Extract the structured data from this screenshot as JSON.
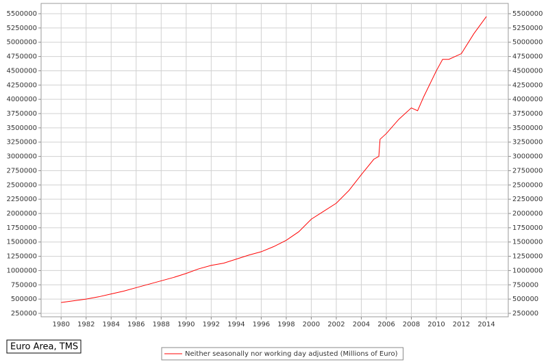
{
  "chart_data": {
    "type": "line",
    "title": "Euro Area, TMS",
    "x": [
      1980,
      1981,
      1982,
      1983,
      1984,
      1985,
      1986,
      1987,
      1988,
      1989,
      1990,
      1991,
      1992,
      1993,
      1994,
      1995,
      1996,
      1997,
      1998,
      1999,
      2000,
      2001,
      2002,
      2003,
      2004,
      2005,
      2005.4,
      2005.5,
      2006,
      2007,
      2008,
      2008.5,
      2009,
      2010,
      2010.5,
      2011,
      2012,
      2013,
      2014
    ],
    "series": [
      {
        "name": "Neither seasonally nor working day adjusted (Millions of Euro)",
        "color": "#ff0000",
        "values": [
          440000,
          470000,
          500000,
          540000,
          590000,
          640000,
          700000,
          760000,
          820000,
          880000,
          950000,
          1030000,
          1090000,
          1130000,
          1200000,
          1270000,
          1330000,
          1420000,
          1530000,
          1680000,
          1900000,
          2040000,
          2180000,
          2400000,
          2680000,
          2950000,
          3000000,
          3300000,
          3400000,
          3650000,
          3850000,
          3800000,
          4050000,
          4500000,
          4700000,
          4700000,
          4800000,
          5150000,
          5450000
        ]
      }
    ],
    "xlim": [
      1978.4,
      2015.75
    ],
    "xticks": [
      1980,
      1982,
      1984,
      1986,
      1988,
      1990,
      1992,
      1994,
      1996,
      1998,
      2000,
      2002,
      2004,
      2006,
      2008,
      2010,
      2012,
      2014
    ],
    "ylim": [
      190000,
      5680000
    ],
    "yticks": [
      250000,
      500000,
      750000,
      1000000,
      1250000,
      1500000,
      1750000,
      2000000,
      2250000,
      2500000,
      2750000,
      3000000,
      3250000,
      3500000,
      3750000,
      4000000,
      4250000,
      4500000,
      4750000,
      5000000,
      5250000,
      5500000
    ],
    "y2lim": [
      190000,
      5680000
    ],
    "y2ticks": [
      250000,
      500000,
      750000,
      1000000,
      1250000,
      1500000,
      1750000,
      2000000,
      2250000,
      2500000,
      2750000,
      3000000,
      3250000,
      3500000,
      3750000,
      4000000,
      4250000,
      4500000,
      4750000,
      5000000,
      5250000,
      5500000
    ],
    "grid": true
  }
}
